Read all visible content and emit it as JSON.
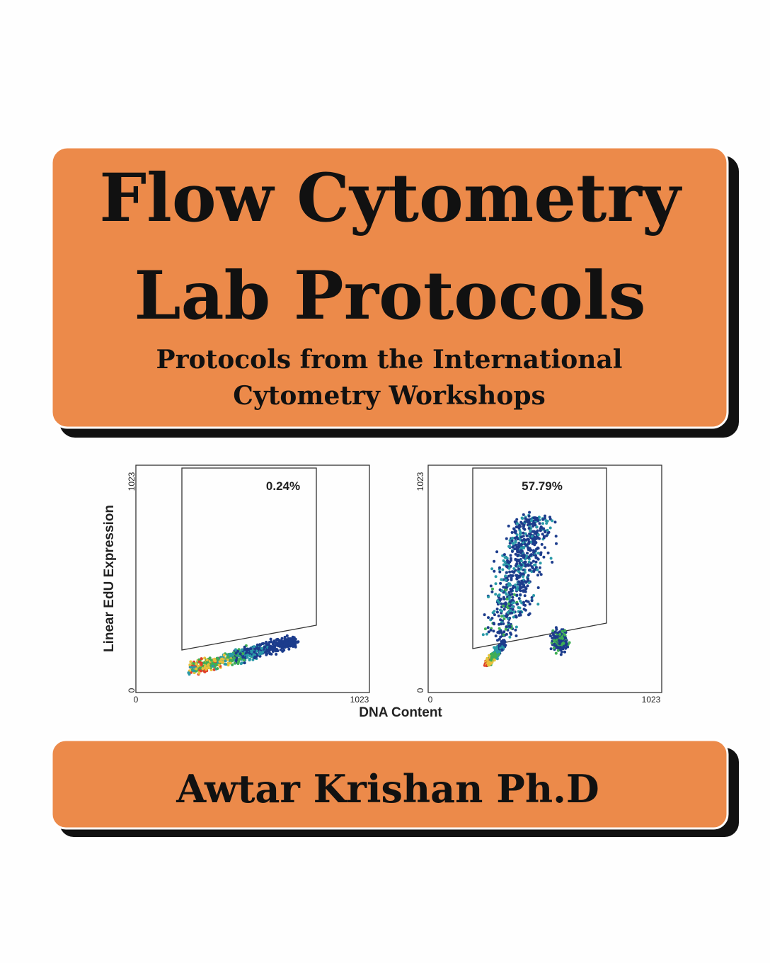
{
  "title": {
    "lines": [
      "Flow Cytometry",
      "Lab Protocols"
    ]
  },
  "subtitle": {
    "lines": [
      "Protocols from the International",
      "Cytometry Workshops"
    ]
  },
  "figure": {
    "y_label": "Linear EdU Expression",
    "x_label": "DNA Content",
    "panels": [
      {
        "gate_label": "0.24%",
        "x_ticks": [
          "0",
          "1023"
        ],
        "y_ticks": [
          "0",
          "1023"
        ]
      },
      {
        "gate_label": "57.79%",
        "x_ticks": [
          "0",
          "1023"
        ],
        "y_ticks": [
          "0",
          "1023"
        ]
      }
    ]
  },
  "author": "Awtar Krishan Ph.D"
}
